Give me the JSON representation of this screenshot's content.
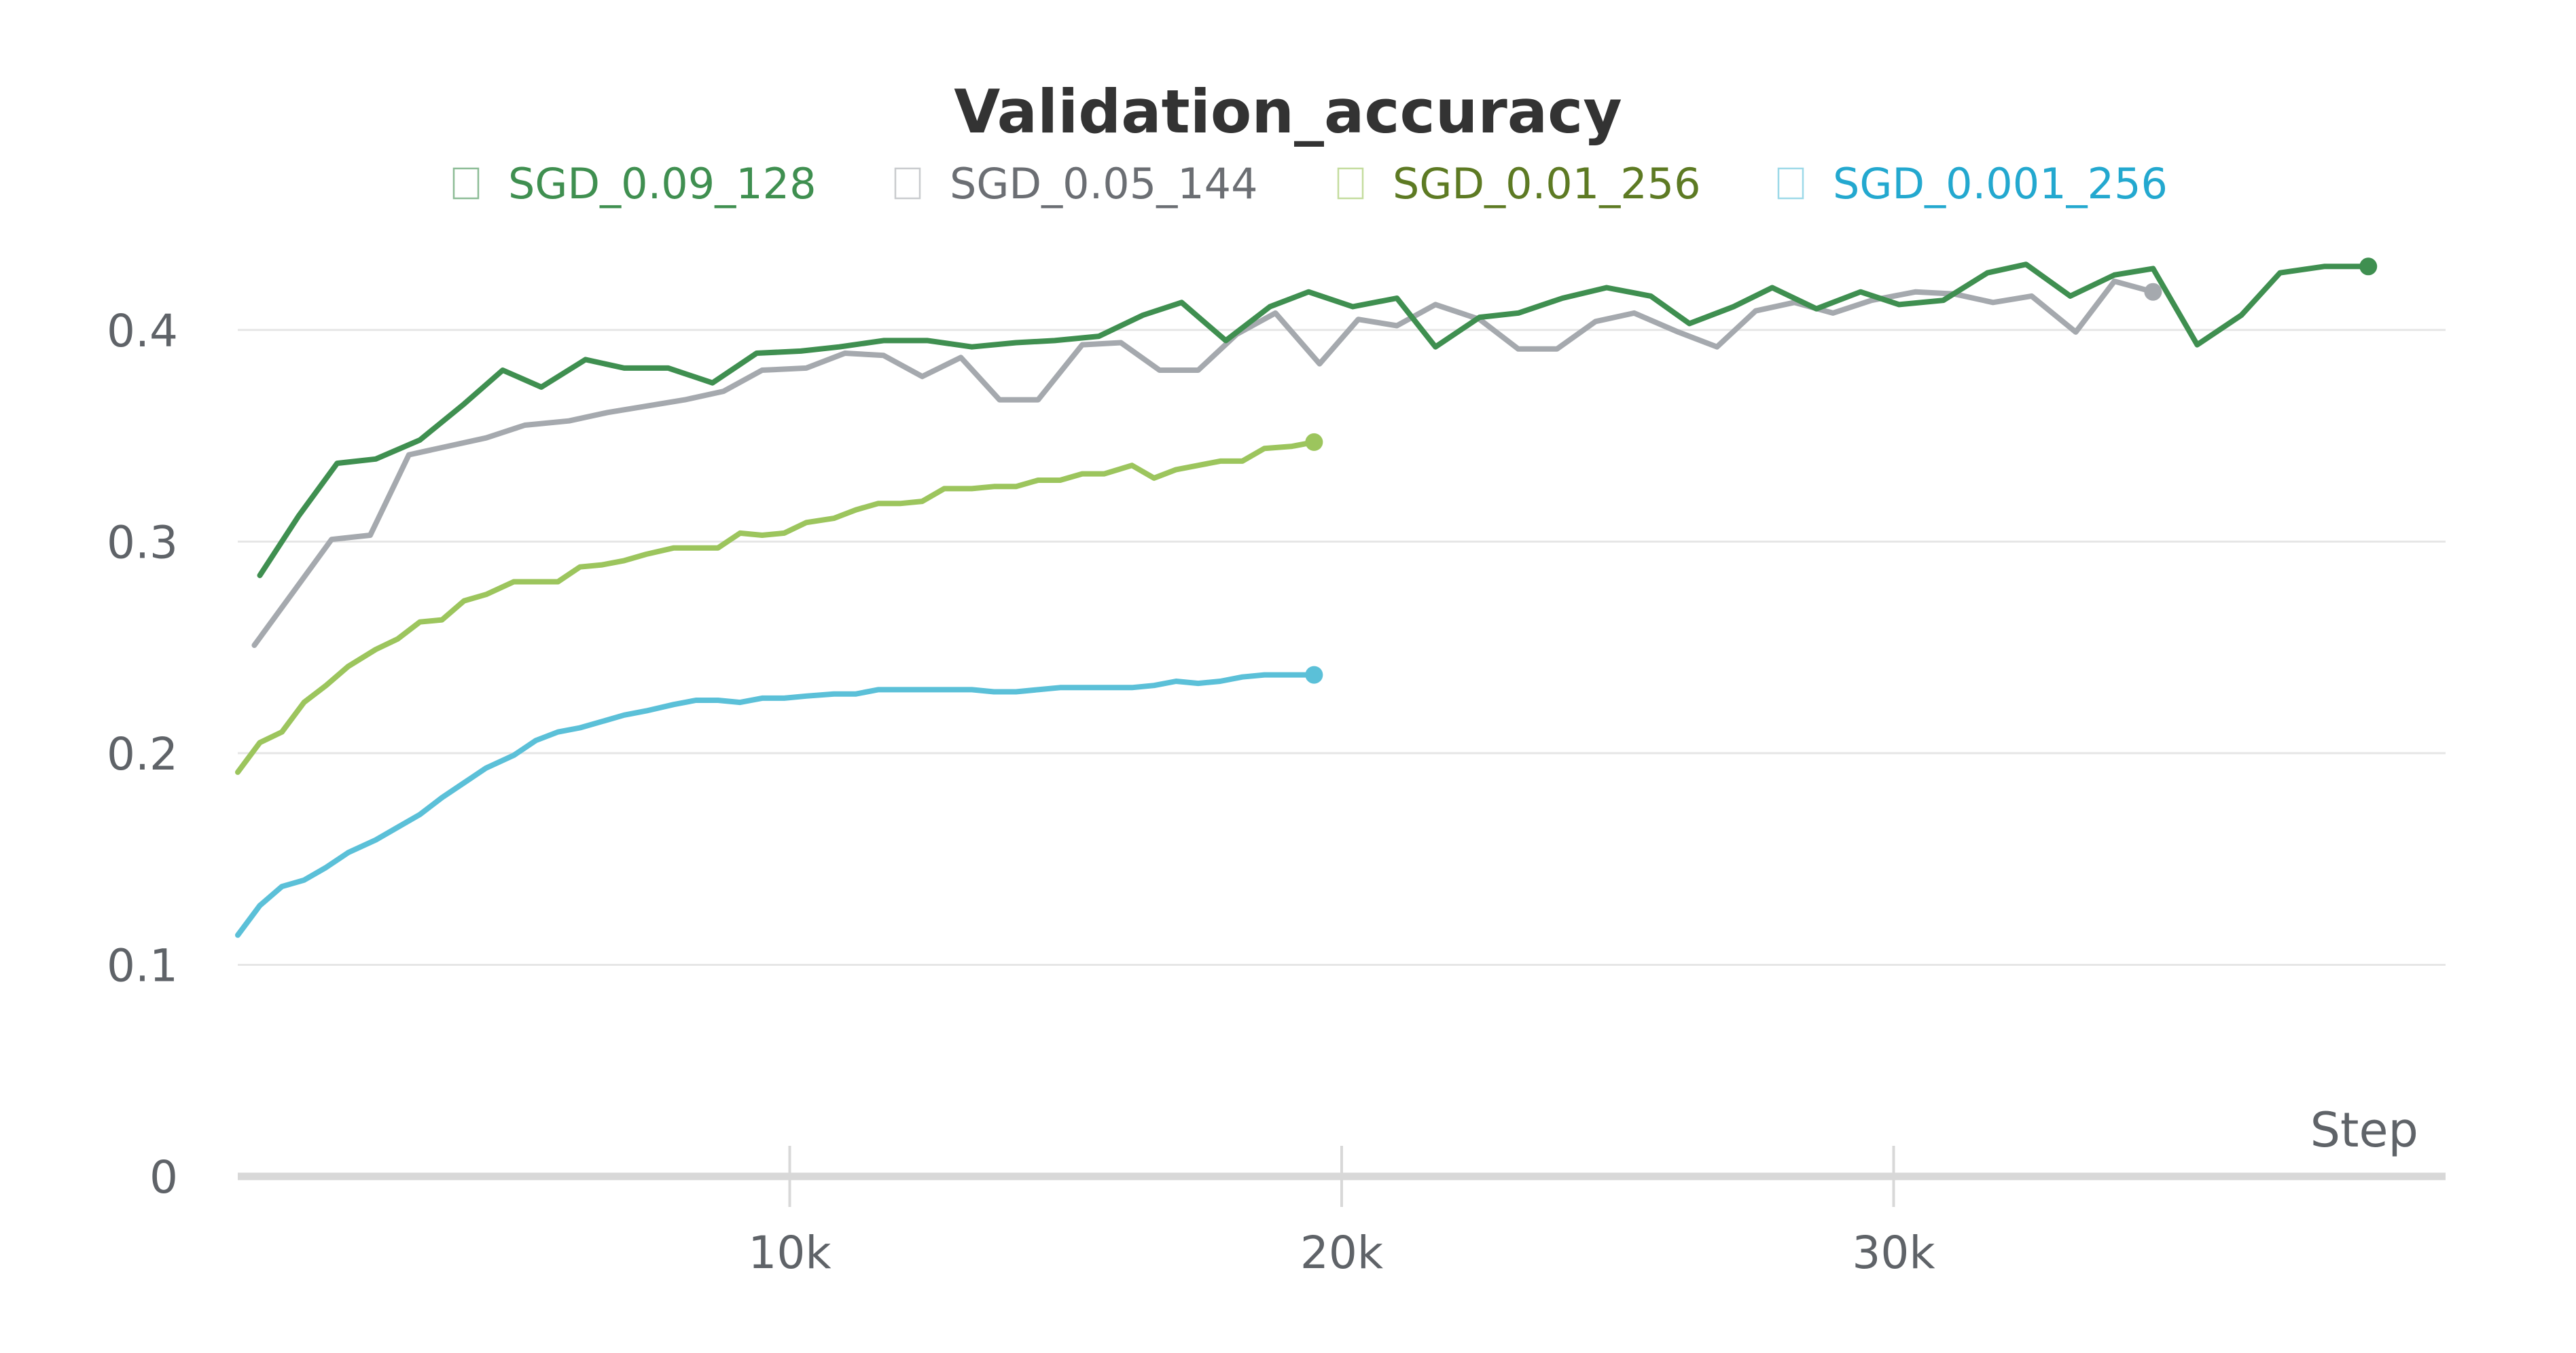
{
  "chart_data": {
    "type": "line",
    "title": "Validation_accuracy",
    "xlabel": "Step",
    "ylabel": "",
    "xlim": [
      0,
      40000
    ],
    "ylim": [
      0,
      0.45
    ],
    "x_ticks": [
      10000,
      20000,
      30000
    ],
    "x_tick_labels": [
      "10k",
      "20k",
      "30k"
    ],
    "y_ticks": [
      0,
      0.1,
      0.2,
      0.3,
      0.4
    ],
    "y_tick_labels": [
      "0",
      "0.1",
      "0.2",
      "0.3",
      "0.4"
    ],
    "grid": "horizontal",
    "legend_position": "top",
    "series": [
      {
        "name": "SGD_0.09_128",
        "color": "#3f8f50",
        "label_color": "#3f8f50",
        "x": [
          400,
          1100,
          1800,
          2500,
          3300,
          4100,
          4800,
          5500,
          6300,
          7000,
          7800,
          8600,
          9400,
          10200,
          10900,
          11700,
          12500,
          13300,
          14100,
          14800,
          15600,
          16400,
          17100,
          17900,
          18700,
          19400,
          20200,
          21000,
          21700,
          22500,
          23200,
          24000,
          24800,
          25600,
          26300,
          27100,
          27800,
          28600,
          29400,
          30100,
          30900,
          31700,
          32400,
          33200,
          34000,
          34700,
          35500,
          36300,
          37000,
          37800,
          38600
        ],
        "y": [
          0.284,
          0.312,
          0.337,
          0.339,
          0.348,
          0.365,
          0.381,
          0.373,
          0.386,
          0.382,
          0.382,
          0.375,
          0.389,
          0.39,
          0.392,
          0.395,
          0.395,
          0.392,
          0.394,
          0.395,
          0.397,
          0.407,
          0.413,
          0.395,
          0.411,
          0.418,
          0.411,
          0.415,
          0.392,
          0.406,
          0.408,
          0.415,
          0.42,
          0.416,
          0.403,
          0.411,
          0.42,
          0.41,
          0.418,
          0.412,
          0.414,
          0.427,
          0.431,
          0.416,
          0.426,
          0.429,
          0.393,
          0.407,
          0.427,
          0.43,
          0.43
        ]
      },
      {
        "name": "SGD_0.05_144",
        "color": "#a5a9ae",
        "label_color": "#6b6e73",
        "x": [
          300,
          1000,
          1700,
          2400,
          3100,
          3800,
          4500,
          5200,
          6000,
          6700,
          7400,
          8100,
          8800,
          9500,
          10300,
          11000,
          11700,
          12400,
          13100,
          13800,
          14500,
          15300,
          16000,
          16700,
          17400,
          18100,
          18800,
          19600,
          20300,
          21000,
          21700,
          22500,
          23200,
          23900,
          24600,
          25300,
          26100,
          26800,
          27500,
          28200,
          28900,
          29600,
          30400,
          31100,
          31800,
          32500,
          33300,
          34000,
          34700
        ],
        "y": [
          0.251,
          0.276,
          0.301,
          0.303,
          0.341,
          0.345,
          0.349,
          0.355,
          0.357,
          0.361,
          0.364,
          0.367,
          0.371,
          0.381,
          0.382,
          0.389,
          0.388,
          0.378,
          0.387,
          0.367,
          0.367,
          0.393,
          0.394,
          0.381,
          0.381,
          0.398,
          0.408,
          0.384,
          0.405,
          0.402,
          0.412,
          0.405,
          0.391,
          0.391,
          0.404,
          0.408,
          0.399,
          0.392,
          0.409,
          0.413,
          0.408,
          0.414,
          0.418,
          0.417,
          0.413,
          0.416,
          0.399,
          0.423,
          0.418
        ]
      },
      {
        "name": "SGD_0.01_256",
        "color": "#9cc55d",
        "label_color": "#5d7a23",
        "x": [
          0,
          400,
          800,
          1200,
          1600,
          2000,
          2500,
          2900,
          3300,
          3700,
          4100,
          4500,
          5000,
          5400,
          5800,
          6200,
          6600,
          7000,
          7400,
          7900,
          8300,
          8700,
          9100,
          9500,
          9900,
          10300,
          10800,
          11200,
          11600,
          12000,
          12400,
          12800,
          13300,
          13700,
          14100,
          14500,
          14900,
          15300,
          15700,
          16200,
          16600,
          17000,
          17400,
          17800,
          18200,
          18600,
          19100,
          19500
        ],
        "y": [
          0.191,
          0.205,
          0.21,
          0.224,
          0.232,
          0.241,
          0.249,
          0.254,
          0.262,
          0.263,
          0.272,
          0.275,
          0.281,
          0.281,
          0.281,
          0.288,
          0.289,
          0.291,
          0.294,
          0.297,
          0.297,
          0.297,
          0.304,
          0.303,
          0.304,
          0.309,
          0.311,
          0.315,
          0.318,
          0.318,
          0.319,
          0.325,
          0.325,
          0.326,
          0.326,
          0.329,
          0.329,
          0.332,
          0.332,
          0.336,
          0.33,
          0.334,
          0.336,
          0.338,
          0.338,
          0.344,
          0.345,
          0.347
        ]
      },
      {
        "name": "SGD_0.001_256",
        "color": "#5bc0d8",
        "label_color": "#23a8cf",
        "x": [
          0,
          400,
          800,
          1200,
          1600,
          2000,
          2500,
          2900,
          3300,
          3700,
          4100,
          4500,
          5000,
          5400,
          5800,
          6200,
          6600,
          7000,
          7400,
          7900,
          8300,
          8700,
          9100,
          9500,
          9900,
          10300,
          10800,
          11200,
          11600,
          12000,
          12400,
          12800,
          13300,
          13700,
          14100,
          14500,
          14900,
          15300,
          15700,
          16200,
          16600,
          17000,
          17400,
          17800,
          18200,
          18600,
          19100,
          19500
        ],
        "y": [
          0.114,
          0.128,
          0.137,
          0.14,
          0.146,
          0.153,
          0.159,
          0.165,
          0.171,
          0.179,
          0.186,
          0.193,
          0.199,
          0.206,
          0.21,
          0.212,
          0.215,
          0.218,
          0.22,
          0.223,
          0.225,
          0.225,
          0.224,
          0.226,
          0.226,
          0.227,
          0.228,
          0.228,
          0.23,
          0.23,
          0.23,
          0.23,
          0.23,
          0.229,
          0.229,
          0.23,
          0.231,
          0.231,
          0.231,
          0.231,
          0.232,
          0.234,
          0.233,
          0.234,
          0.236,
          0.237,
          0.237,
          0.237
        ]
      }
    ]
  }
}
